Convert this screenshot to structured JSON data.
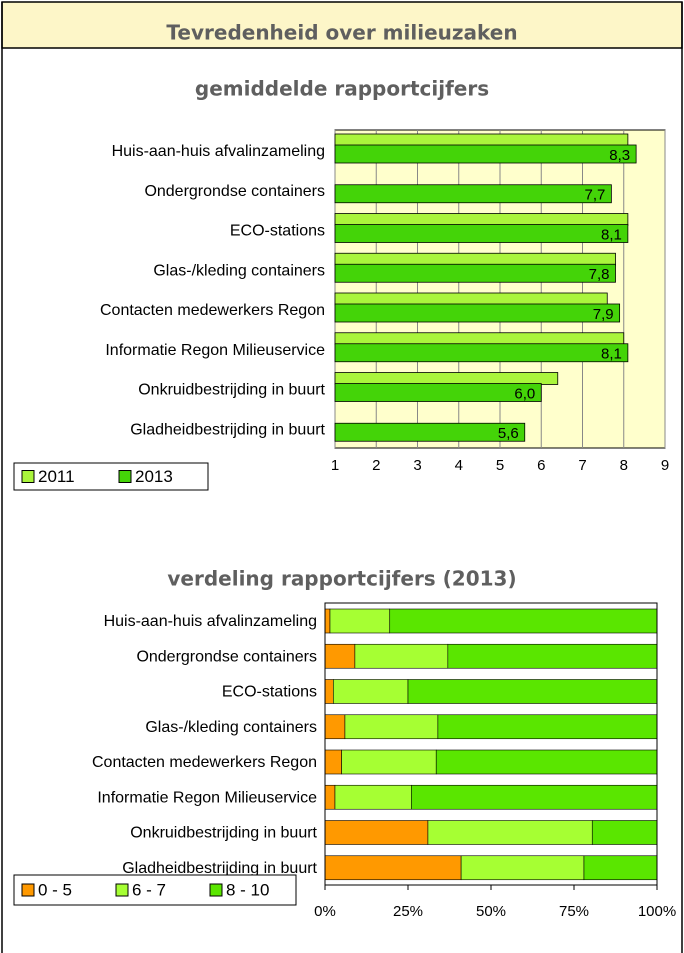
{
  "header": {
    "title": "Tevredenheid over milieuzaken"
  },
  "chart_data": [
    {
      "type": "bar",
      "orientation": "horizontal",
      "title": "gemiddelde rapportcijfers",
      "categories": [
        "Huis-aan-huis afvalinzameling",
        "Ondergrondse containers",
        "ECO-stations",
        "Glas-/kleding containers",
        "Contacten medewerkers Regon",
        "Informatie Regon Milieuservice",
        "Onkruidbestrijding in buurt",
        "Gladheidbestrijding in buurt"
      ],
      "series": [
        {
          "name": "2011",
          "color": "#aaf53c",
          "values": [
            8.1,
            null,
            8.1,
            7.8,
            7.6,
            8.0,
            6.4,
            null
          ]
        },
        {
          "name": "2013",
          "color": "#44d408",
          "values": [
            8.3,
            7.7,
            8.1,
            7.8,
            7.9,
            8.1,
            6.0,
            5.6
          ],
          "value_labels": [
            "8,3",
            "7,7",
            "8,1",
            "7,8",
            "7,9",
            "8,1",
            "6,0",
            "5,6"
          ]
        }
      ],
      "xlim": [
        1,
        9
      ],
      "xticks": [
        1,
        2,
        3,
        4,
        5,
        6,
        7,
        8,
        9
      ],
      "grid": true,
      "background": "#ffffcc",
      "legend": "bottom-left"
    },
    {
      "type": "stacked_bar",
      "orientation": "horizontal",
      "title": "verdeling rapportcijfers (2013)",
      "categories": [
        "Huis-aan-huis afvalinzameling",
        "Ondergrondse containers",
        "ECO-stations",
        "Glas-/kleding containers",
        "Contacten medewerkers Regon",
        "Informatie Regon Milieuservice",
        "Onkruidbestrijding in buurt",
        "Gladheidbestrijding in buurt"
      ],
      "series": [
        {
          "name": "0 - 5",
          "color": "#ff9900",
          "values": [
            1.5,
            9,
            2.5,
            6,
            5,
            3,
            31,
            41
          ]
        },
        {
          "name": "6 - 7",
          "color": "#a6ff33",
          "values": [
            18,
            28,
            22.5,
            28,
            28.5,
            23,
            49.5,
            37
          ]
        },
        {
          "name": "8 - 10",
          "color": "#5ae600",
          "values": [
            80.5,
            63,
            75,
            66,
            66.5,
            74,
            19.5,
            22
          ]
        }
      ],
      "xlim": [
        0,
        100
      ],
      "xticks": [
        {
          "value": 0,
          "label": "0%"
        },
        {
          "value": 25,
          "label": "25%"
        },
        {
          "value": 50,
          "label": "50%"
        },
        {
          "value": 75,
          "label": "75%"
        },
        {
          "value": 100,
          "label": "100%"
        }
      ],
      "grid": false,
      "legend": "bottom-left"
    }
  ]
}
